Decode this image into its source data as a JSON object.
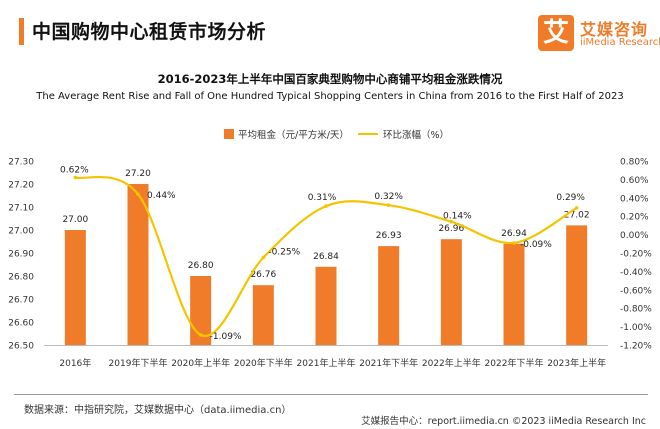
{
  "header": {
    "title": "中国购物中心租赁市场分析",
    "accent_color": "#f07c2a"
  },
  "logo": {
    "mark": "艾",
    "name_cn": "艾媒咨询",
    "name_en": "iiMedia Research"
  },
  "footer": {
    "source": "数据来源：中指研究院，艾媒数据中心（data.iimedia.cn）",
    "copyright": "艾媒报告中心：report.iimedia.cn  ©2023  iiMedia Research  Inc"
  },
  "chart_data": {
    "type": "bar",
    "title": "2016-2023年上半年中国百家典型购物中心商铺平均租金涨跌情况",
    "subtitle": "The Average Rent Rise and Fall of One Hundred Typical Shopping Centers in China from 2016 to the First Half of 2023",
    "categories": [
      "2016年",
      "2019年下半年",
      "2020年上半年",
      "2020年下半年",
      "2021年上半年",
      "2021年下半年",
      "2022年上半年",
      "2022年下半年",
      "2023年上半年"
    ],
    "series": [
      {
        "name": "平均租金（元/平方米/天）",
        "type": "bar",
        "axis": "left",
        "color": "#f07c2a",
        "values": [
          27.0,
          27.2,
          26.8,
          26.76,
          26.84,
          26.93,
          26.96,
          26.94,
          27.02
        ],
        "labels": [
          "27.00",
          "27.20",
          "26.80",
          "26.76",
          "26.84",
          "26.93",
          "26.96",
          "26.94",
          "27.02"
        ]
      },
      {
        "name": "环比涨幅（%）",
        "type": "line",
        "axis": "right",
        "color": "#f5c400",
        "values": [
          0.62,
          0.44,
          -1.09,
          -0.25,
          0.31,
          0.32,
          0.14,
          -0.09,
          0.29
        ],
        "labels": [
          "0.62%",
          "0.44%",
          "-1.09%",
          "-0.25%",
          "0.31%",
          "0.32%",
          "0.14%",
          "-0.09%",
          "0.29%"
        ]
      }
    ],
    "y_left": {
      "ylim": [
        26.5,
        27.3
      ],
      "ticks": [
        "26.50",
        "26.60",
        "26.70",
        "26.80",
        "26.90",
        "27.00",
        "27.10",
        "27.20",
        "27.30"
      ]
    },
    "y_right": {
      "ylim": [
        -1.2,
        0.8
      ],
      "ticks": [
        "-1.20%",
        "-1.00%",
        "-0.80%",
        "-0.60%",
        "-0.40%",
        "-0.20%",
        "0.00%",
        "0.20%",
        "0.40%",
        "0.60%",
        "0.80%"
      ]
    },
    "legend_position": "top-center",
    "grid": false
  }
}
